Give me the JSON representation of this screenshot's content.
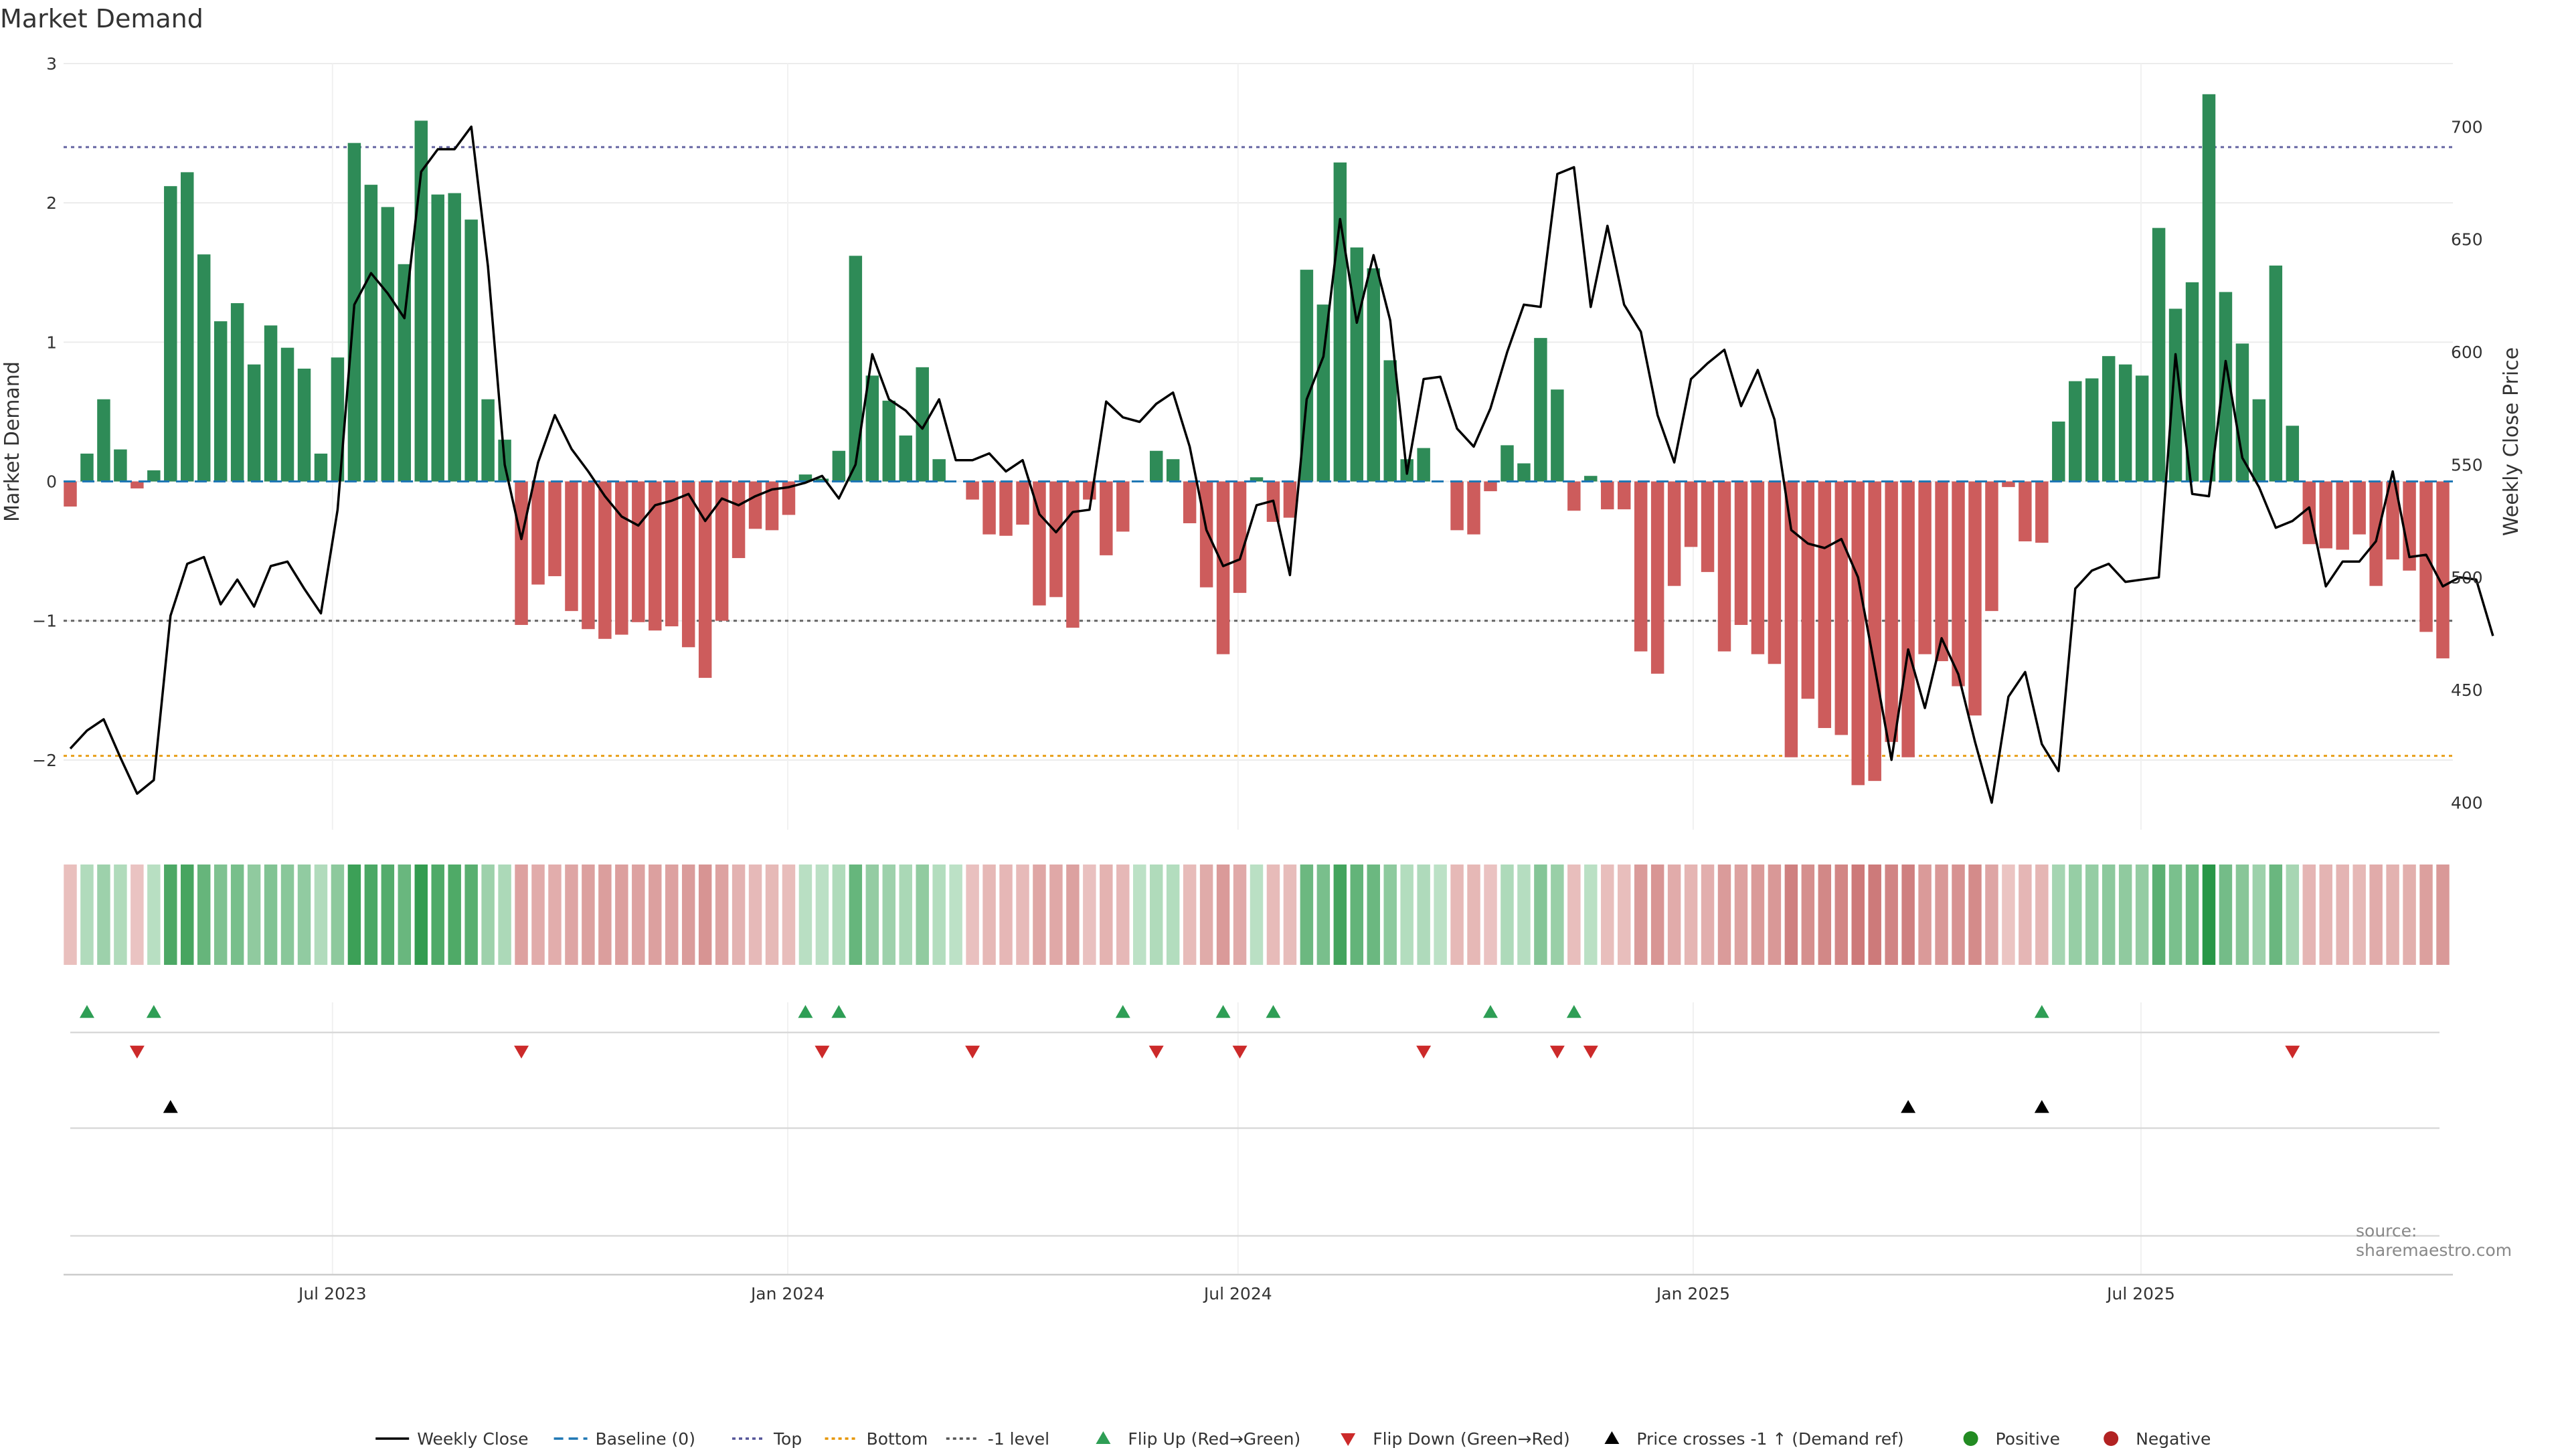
{
  "page": {
    "title": "Market Demand",
    "source": "source: sharemaestro.com"
  },
  "chart_data": {
    "type": "bar",
    "title": "Market Demand",
    "ylabel": "Market Demand",
    "y2label": "Weekly Close Price",
    "ylim": [
      -2.5,
      3.0
    ],
    "y2lim": [
      388,
      728
    ],
    "yticks": [
      3,
      2,
      1,
      0,
      -1,
      -2
    ],
    "yticklabels": [
      "3",
      "2",
      "1",
      "0",
      "−1",
      "−2"
    ],
    "y2ticks": [
      700,
      650,
      600,
      550,
      500,
      450,
      400
    ],
    "x_start": "2023-03-17",
    "x_end": "2025-10-31",
    "xtick_dates": [
      "2023-07-01",
      "2024-01-01",
      "2024-07-01",
      "2025-01-01",
      "2025-07-01"
    ],
    "xtick_labels": [
      "Jul 2023",
      "Jan 2024",
      "Jul 2024",
      "Jan 2025",
      "Jul 2025"
    ],
    "grid": true,
    "legend_position": "bottom",
    "series": [
      {
        "name": "Market Demand",
        "kind": "bar",
        "positive_color": "#2e8b57",
        "negative_color": "#cd5c5c",
        "values": [
          -0.18,
          0.2,
          0.59,
          0.23,
          -0.05,
          0.08,
          2.12,
          2.22,
          1.63,
          1.15,
          1.28,
          0.84,
          1.12,
          0.96,
          0.81,
          0.2,
          0.89,
          2.43,
          2.13,
          1.97,
          1.56,
          2.59,
          2.06,
          2.07,
          1.88,
          0.59,
          0.3,
          -1.03,
          -0.74,
          -0.68,
          -0.93,
          -1.06,
          -1.13,
          -1.1,
          -1.01,
          -1.07,
          -1.04,
          -1.19,
          -1.41,
          -1.0,
          -0.55,
          -0.34,
          -0.35,
          -0.24,
          0.05,
          0.02,
          0.22,
          1.62,
          0.76,
          0.58,
          0.33,
          0.82,
          0.16,
          0.0,
          -0.13,
          -0.38,
          -0.39,
          -0.31,
          -0.89,
          -0.83,
          -1.05,
          -0.13,
          -0.53,
          -0.36,
          0.0,
          0.22,
          0.16,
          -0.3,
          -0.76,
          -1.24,
          -0.8,
          0.03,
          -0.29,
          -0.26,
          1.52,
          1.27,
          2.29,
          1.68,
          1.53,
          0.87,
          0.16,
          0.24,
          0.0,
          -0.35,
          -0.38,
          -0.07,
          0.26,
          0.13,
          1.03,
          0.66,
          -0.21,
          0.04,
          -0.2,
          -0.2,
          -1.22,
          -1.38,
          -0.75,
          -0.47,
          -0.65,
          -1.22,
          -1.03,
          -1.24,
          -1.31,
          -1.98,
          -1.56,
          -1.77,
          -1.82,
          -2.18,
          -2.15,
          -1.87,
          -1.98,
          -1.24,
          -1.29,
          -1.47,
          -1.68,
          -0.93,
          -0.04,
          -0.43,
          -0.44,
          0.43,
          0.72,
          0.74,
          0.9,
          0.84,
          0.76,
          1.82,
          1.24,
          1.43,
          2.78,
          1.36,
          0.99,
          0.59,
          1.55,
          0.4,
          -0.45,
          -0.48,
          -0.49,
          -0.38,
          -0.75,
          -0.56,
          -0.64,
          -1.08,
          -1.27
        ]
      },
      {
        "name": "Weekly Close",
        "kind": "line",
        "axis": "right",
        "color": "#000000",
        "values": [
          424,
          432,
          437,
          420,
          404,
          410,
          483,
          506,
          509,
          488,
          499,
          487,
          505,
          507,
          495,
          484,
          530,
          621,
          635,
          626,
          615,
          680,
          690,
          690,
          700,
          638,
          550,
          517,
          551,
          572,
          557,
          547,
          536,
          527,
          523,
          532,
          534,
          537,
          525,
          535,
          532,
          536,
          539,
          540,
          542,
          545,
          535,
          550,
          599,
          579,
          574,
          566,
          579,
          552,
          552,
          555,
          547,
          552,
          528,
          520,
          529,
          530,
          578,
          571,
          569,
          577,
          582,
          558,
          521,
          505,
          508,
          532,
          534,
          501,
          579,
          598,
          659,
          613,
          643,
          614,
          546,
          588,
          589,
          566,
          558,
          575,
          600,
          621,
          620,
          679,
          682,
          620,
          656,
          621,
          609,
          572,
          551,
          588,
          595,
          601,
          576,
          592,
          570,
          521,
          515,
          513,
          517,
          500,
          460,
          419,
          468,
          442,
          473,
          457,
          427,
          400,
          447,
          458,
          426,
          414,
          495,
          503,
          506,
          498,
          499,
          500,
          599,
          537,
          536,
          596,
          553,
          540,
          522,
          525,
          531,
          496,
          507,
          507,
          516,
          547,
          509,
          510,
          496,
          500,
          499,
          474
        ]
      }
    ],
    "reference_lines": [
      {
        "name": "Baseline (0)",
        "value": 0,
        "style": "dashed",
        "color": "#1f77b4"
      },
      {
        "name": "Top",
        "value": 2.4,
        "style": "dotted",
        "color": "#555599"
      },
      {
        "name": "Bottom",
        "value": -1.97,
        "style": "dotted",
        "color": "#e69500"
      },
      {
        "name": "-1 level",
        "value": -1,
        "style": "dotted",
        "color": "#555555"
      }
    ],
    "flip_up_weeks": [
      1,
      5,
      44,
      46,
      63,
      69,
      72,
      85,
      90,
      118
    ],
    "flip_down_weeks": [
      4,
      27,
      45,
      54,
      65,
      70,
      81,
      89,
      91,
      133
    ],
    "price_cross_weeks": [
      6,
      110,
      118
    ]
  },
  "legend": {
    "items": [
      {
        "label": "Weekly Close",
        "marker": "line",
        "color": "#000000"
      },
      {
        "label": "Baseline (0)",
        "marker": "dash",
        "color": "#1f77b4"
      },
      {
        "label": "Top",
        "marker": "dot",
        "color": "#555599"
      },
      {
        "label": "Bottom",
        "marker": "dot",
        "color": "#e69500"
      },
      {
        "label": "-1 level",
        "marker": "dot",
        "color": "#555555"
      },
      {
        "label": "Flip Up (Red→Green)",
        "marker": "tri-up",
        "color": "#2e9e55"
      },
      {
        "label": "Flip Down (Green→Red)",
        "marker": "tri-down",
        "color": "#cc2a2a"
      },
      {
        "label": "Price crosses -1 ↑ (Demand ref)",
        "marker": "tri-up",
        "color": "#000000"
      },
      {
        "label": "Positive",
        "marker": "circle",
        "color": "#228b22"
      },
      {
        "label": "Negative",
        "marker": "circle",
        "color": "#b22222"
      }
    ]
  }
}
